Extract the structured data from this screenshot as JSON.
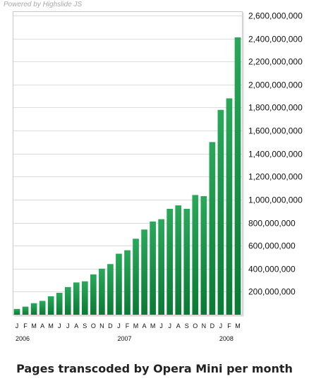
{
  "credit": "Powered by Highslide JS",
  "caption": "Pages transcoded by Opera Mini per month",
  "colors": {
    "bar_top": "#2aa85a",
    "bar_bottom": "#0a7a35",
    "frame": "#c9c9c9",
    "grid": "#dcdcdc"
  },
  "chart_data": {
    "type": "bar",
    "title": "",
    "xlabel": "",
    "ylabel": "",
    "ylim": [
      0,
      2600000000
    ],
    "grid": true,
    "yticks": [
      200000000,
      400000000,
      600000000,
      800000000,
      1000000000,
      1200000000,
      1400000000,
      1600000000,
      1800000000,
      2000000000,
      2200000000,
      2400000000,
      2600000000
    ],
    "ytick_labels": [
      "200,000,000",
      "400,000,000",
      "600,000,000",
      "800,000,000",
      "1,000,000,000",
      "1,200,000,000",
      "1,400,000,000",
      "1,600,000,000",
      "1,800,000,000",
      "2,000,000,000",
      "2,200,000,000",
      "2,400,000,000",
      "2,600,000,000"
    ],
    "categories": [
      "J",
      "F",
      "M",
      "A",
      "M",
      "J",
      "J",
      "A",
      "S",
      "O",
      "N",
      "D",
      "J",
      "F",
      "M",
      "A",
      "M",
      "J",
      "J",
      "A",
      "S",
      "O",
      "N",
      "D",
      "J",
      "F",
      "M"
    ],
    "values": [
      50000000,
      70000000,
      100000000,
      120000000,
      160000000,
      190000000,
      240000000,
      280000000,
      290000000,
      350000000,
      400000000,
      440000000,
      530000000,
      560000000,
      660000000,
      740000000,
      810000000,
      830000000,
      920000000,
      950000000,
      920000000,
      1040000000,
      1030000000,
      1500000000,
      1780000000,
      1880000000,
      2410000000
    ],
    "year_labels": [
      {
        "label": "2006",
        "category_index": 0
      },
      {
        "label": "2007",
        "category_index": 12
      },
      {
        "label": "2008",
        "category_index": 24
      }
    ]
  }
}
